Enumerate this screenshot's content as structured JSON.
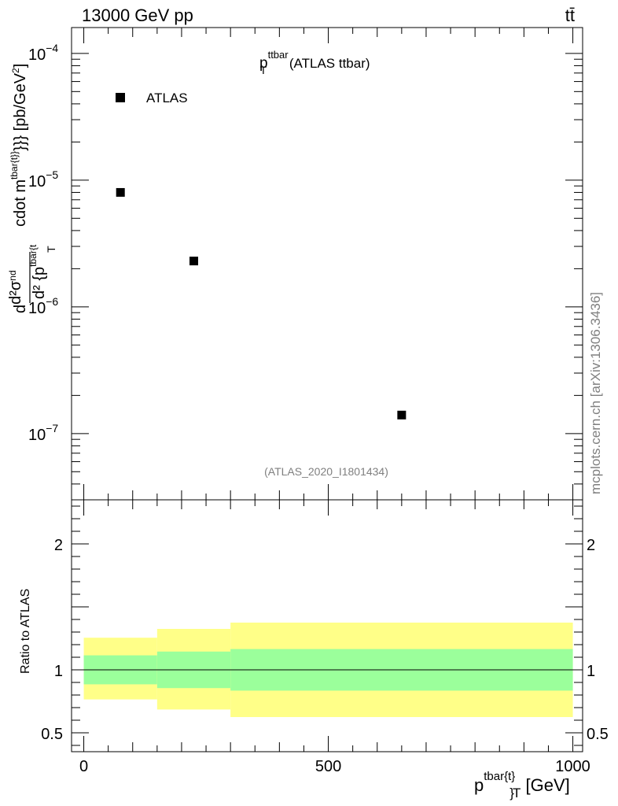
{
  "header": {
    "energy_label": "13000 GeV pp",
    "process_label": "tt̄"
  },
  "side_label": "mcplots.cern.ch [arXiv:1306.3436]",
  "chart_data": [
    {
      "type": "scatter",
      "panel": "main",
      "title_main": "p",
      "title_sup": "ttbar",
      "title_sub": "T",
      "title_rest": " (ATLAS ttbar)",
      "analysis_id": "(ATLAS_2020_I1801434)",
      "yscale": "log",
      "ylim": [
        3e-08,
        0.00016
      ],
      "xlim": [
        -25,
        1020
      ],
      "ylabel": "d d²σ^{nd} / d² {p^{tbar{t}} _T} cdot m^{tbar{t}}}} [pb/GeV²]",
      "y_ticks": [
        {
          "value": 0.0001,
          "mant": "10",
          "exp": "−4"
        },
        {
          "value": 1e-05,
          "mant": "10",
          "exp": "−5"
        },
        {
          "value": 1e-06,
          "mant": "10",
          "exp": "−6"
        },
        {
          "value": 1e-07,
          "mant": "10",
          "exp": "−7"
        }
      ],
      "legend": [
        {
          "name": "ATLAS",
          "marker": "square",
          "color": "#000000"
        }
      ],
      "series": [
        {
          "name": "ATLAS",
          "points": [
            {
              "x": 75,
              "y": 8e-06
            },
            {
              "x": 225,
              "y": 2.3e-06
            },
            {
              "x": 650,
              "y": 1.4e-07
            }
          ]
        }
      ]
    },
    {
      "type": "area",
      "panel": "ratio",
      "ylabel": "Ratio to ATLAS",
      "xlabel": "p^{tbar{t}}_T [GeV]",
      "xlim": [
        -25,
        1020
      ],
      "ylim": [
        0.35,
        2.35
      ],
      "x_ticks": [
        {
          "value": 0,
          "label": "0"
        },
        {
          "value": 500,
          "label": "500"
        },
        {
          "value": 1000,
          "label": "1000"
        }
      ],
      "y_ticks": [
        {
          "value": 0.5,
          "label": "0.5"
        },
        {
          "value": 1,
          "label": "1"
        },
        {
          "value": 2,
          "label": "2"
        }
      ],
      "reference_line": 1.0,
      "bands": [
        {
          "x_low": 0,
          "x_high": 150,
          "stat_low": 0.885,
          "stat_high": 1.115,
          "total_low": 0.765,
          "total_high": 1.255
        },
        {
          "x_low": 150,
          "x_high": 300,
          "stat_low": 0.855,
          "stat_high": 1.145,
          "total_low": 0.685,
          "total_high": 1.325
        },
        {
          "x_low": 300,
          "x_high": 1000,
          "stat_low": 0.835,
          "stat_high": 1.165,
          "total_low": 0.625,
          "total_high": 1.375
        }
      ],
      "colors": {
        "stat_band": "#9bff9b",
        "total_band": "#ffff88",
        "line": "#000000"
      }
    }
  ]
}
